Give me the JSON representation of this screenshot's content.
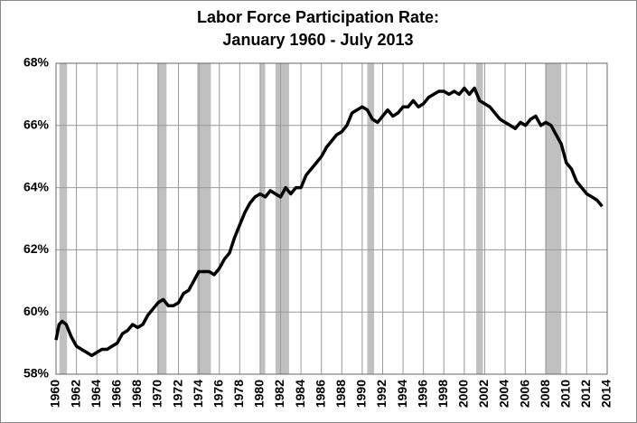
{
  "chart_data": {
    "type": "line",
    "title": "Labor Force Participation Rate:",
    "subtitle": "January 1960 - July 2013",
    "color": "#000000",
    "recession_color": "#c0c0c0",
    "grid": true,
    "x": [
      1960,
      1960.3,
      1960.6,
      1961,
      1961.5,
      1962,
      1962.5,
      1963,
      1963.5,
      1964,
      1964.5,
      1965,
      1965.5,
      1966,
      1966.5,
      1967,
      1967.5,
      1968,
      1968.5,
      1969,
      1969.5,
      1970,
      1970.5,
      1971,
      1971.5,
      1972,
      1972.5,
      1973,
      1973.5,
      1974,
      1974.5,
      1975,
      1975.5,
      1976,
      1976.5,
      1977,
      1977.5,
      1978,
      1978.5,
      1979,
      1979.5,
      1980,
      1980.5,
      1981,
      1981.5,
      1982,
      1982.5,
      1983,
      1983.5,
      1984,
      1984.5,
      1985,
      1985.5,
      1986,
      1986.5,
      1987,
      1987.5,
      1988,
      1988.5,
      1989,
      1989.5,
      1990,
      1990.5,
      1991,
      1991.5,
      1992,
      1992.5,
      1993,
      1993.5,
      1994,
      1994.5,
      1995,
      1995.5,
      1996,
      1996.5,
      1997,
      1997.5,
      1998,
      1998.5,
      1999,
      1999.5,
      2000,
      2000.5,
      2001,
      2001.5,
      2002,
      2002.5,
      2003,
      2003.5,
      2004,
      2004.5,
      2005,
      2005.5,
      2006,
      2006.5,
      2007,
      2007.5,
      2008,
      2008.5,
      2009,
      2009.5,
      2010,
      2010.5,
      2011,
      2011.5,
      2012,
      2012.5,
      2013,
      2013.5
    ],
    "values": [
      59.1,
      59.6,
      59.7,
      59.6,
      59.2,
      58.9,
      58.8,
      58.7,
      58.6,
      58.7,
      58.8,
      58.8,
      58.9,
      59.0,
      59.3,
      59.4,
      59.6,
      59.5,
      59.6,
      59.9,
      60.1,
      60.3,
      60.4,
      60.2,
      60.2,
      60.3,
      60.6,
      60.7,
      61.0,
      61.3,
      61.3,
      61.3,
      61.2,
      61.4,
      61.7,
      61.9,
      62.4,
      62.8,
      63.2,
      63.5,
      63.7,
      63.8,
      63.7,
      63.9,
      63.8,
      63.7,
      64.0,
      63.8,
      64.0,
      64.0,
      64.4,
      64.6,
      64.8,
      65.0,
      65.3,
      65.5,
      65.7,
      65.8,
      66.0,
      66.4,
      66.5,
      66.6,
      66.5,
      66.2,
      66.1,
      66.3,
      66.5,
      66.3,
      66.4,
      66.6,
      66.6,
      66.8,
      66.6,
      66.7,
      66.9,
      67.0,
      67.1,
      67.1,
      67.0,
      67.1,
      67.0,
      67.2,
      67.0,
      67.2,
      66.8,
      66.7,
      66.6,
      66.4,
      66.2,
      66.1,
      66.0,
      65.9,
      66.1,
      66.0,
      66.2,
      66.3,
      66.0,
      66.1,
      66.0,
      65.7,
      65.4,
      64.8,
      64.6,
      64.2,
      64.0,
      63.8,
      63.7,
      63.6,
      63.4
    ],
    "recessions": [
      [
        1960.33,
        1961.08
      ],
      [
        1969.92,
        1970.83
      ],
      [
        1973.83,
        1975.17
      ],
      [
        1980.0,
        1980.5
      ],
      [
        1981.5,
        1982.83
      ],
      [
        1990.5,
        1991.17
      ],
      [
        2001.17,
        2001.83
      ],
      [
        2007.92,
        2009.5
      ]
    ],
    "xlim": [
      1960,
      2014
    ],
    "xticks": [
      1960,
      1962,
      1964,
      1966,
      1968,
      1970,
      1972,
      1974,
      1976,
      1978,
      1980,
      1982,
      1984,
      1986,
      1988,
      1990,
      1992,
      1994,
      1996,
      1998,
      2000,
      2002,
      2004,
      2006,
      2008,
      2010,
      2012,
      2014
    ],
    "ylim": [
      58,
      68
    ],
    "yticks": [
      {
        "value": 58,
        "label": "58%"
      },
      {
        "value": 60,
        "label": "60%"
      },
      {
        "value": 62,
        "label": "62%"
      },
      {
        "value": 64,
        "label": "64%"
      },
      {
        "value": 66,
        "label": "66%"
      },
      {
        "value": 68,
        "label": "68%"
      }
    ]
  }
}
